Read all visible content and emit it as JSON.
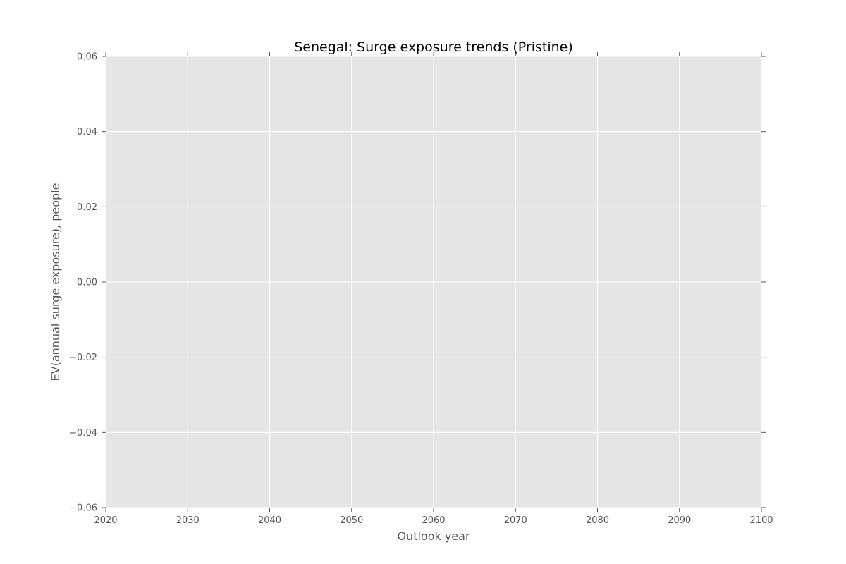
{
  "chart_data": {
    "type": "line",
    "title": "Senegal: Surge exposure trends (Pristine)",
    "xlabel": "Outlook year",
    "ylabel": "EV(annual surge exposure), people",
    "xlim": [
      2020,
      2100
    ],
    "ylim": [
      -0.06,
      0.06
    ],
    "x_ticks": [
      2020,
      2030,
      2040,
      2050,
      2060,
      2070,
      2080,
      2090,
      2100
    ],
    "y_ticks": [
      -0.06,
      -0.04,
      -0.02,
      0.0,
      0.02,
      0.04,
      0.06
    ],
    "x_tick_labels": [
      "2020",
      "2030",
      "2040",
      "2050",
      "2060",
      "2070",
      "2080",
      "2090",
      "2100"
    ],
    "y_tick_labels": [
      "−0.06",
      "−0.04",
      "−0.02",
      "0.00",
      "0.02",
      "0.04",
      "0.06"
    ],
    "series": [],
    "grid": true,
    "legend": "none",
    "colors": {
      "plot_background": "#e5e5e5",
      "grid": "#ffffff",
      "tick": "#555555",
      "text": "#555555",
      "title": "#000000"
    }
  }
}
